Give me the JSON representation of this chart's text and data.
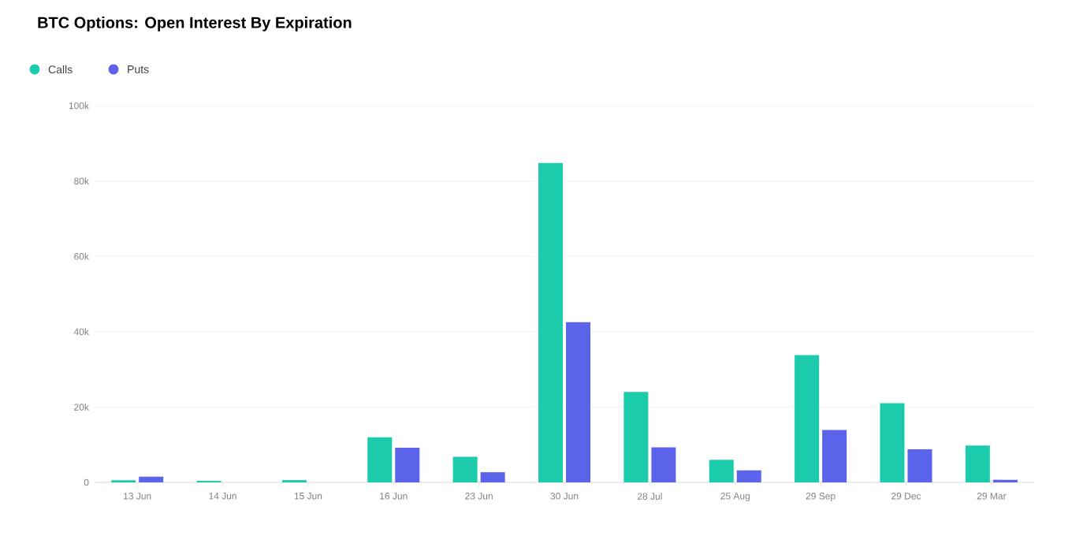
{
  "chart_data": {
    "type": "bar",
    "title": "BTC Options: Open Interest By Expiration",
    "categories": [
      "13 Jun",
      "14 Jun",
      "15 Jun",
      "16 Jun",
      "23 Jun",
      "30 Jun",
      "28 Jul",
      "25 Aug",
      "29 Sep",
      "29 Dec",
      "29 Mar"
    ],
    "series": [
      {
        "name": "Calls",
        "color": "#1ccbac",
        "values": [
          600,
          400,
          600,
          12000,
          6800,
          84800,
          24000,
          6000,
          33800,
          21000,
          9800
        ]
      },
      {
        "name": "Puts",
        "color": "#5b63ea",
        "values": [
          1500,
          0,
          0,
          9200,
          2700,
          42500,
          9300,
          3200,
          13900,
          8800,
          700
        ]
      }
    ],
    "ylim": [
      0,
      100000
    ],
    "yticks": [
      {
        "value": 0,
        "label": "0"
      },
      {
        "value": 20000,
        "label": "20k"
      },
      {
        "value": 40000,
        "label": "40k"
      },
      {
        "value": 60000,
        "label": "60k"
      },
      {
        "value": 80000,
        "label": "80k"
      },
      {
        "value": 100000,
        "label": "100k"
      }
    ],
    "grid": "y",
    "legend": "top left"
  }
}
